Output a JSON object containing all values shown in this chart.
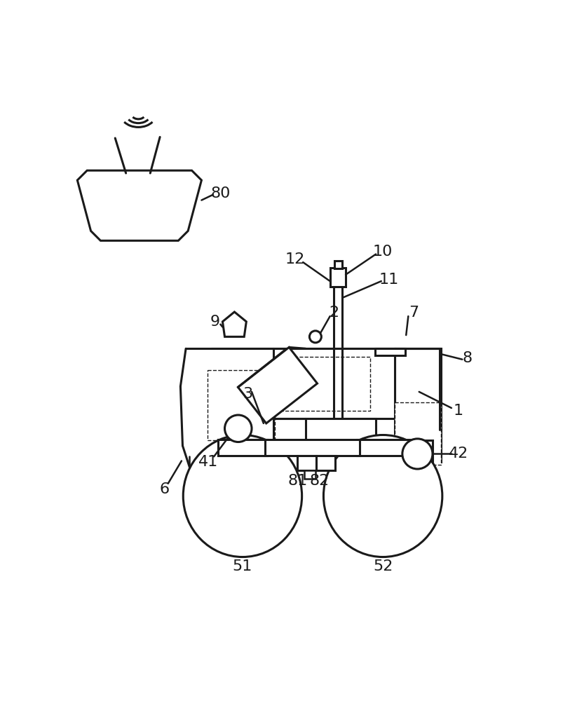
{
  "bg": "#ffffff",
  "lc": "#1a1a1a",
  "lw": 1.8,
  "lw2": 2.2,
  "fs": 15,
  "fig_w": 8.23,
  "fig_h": 10.0
}
